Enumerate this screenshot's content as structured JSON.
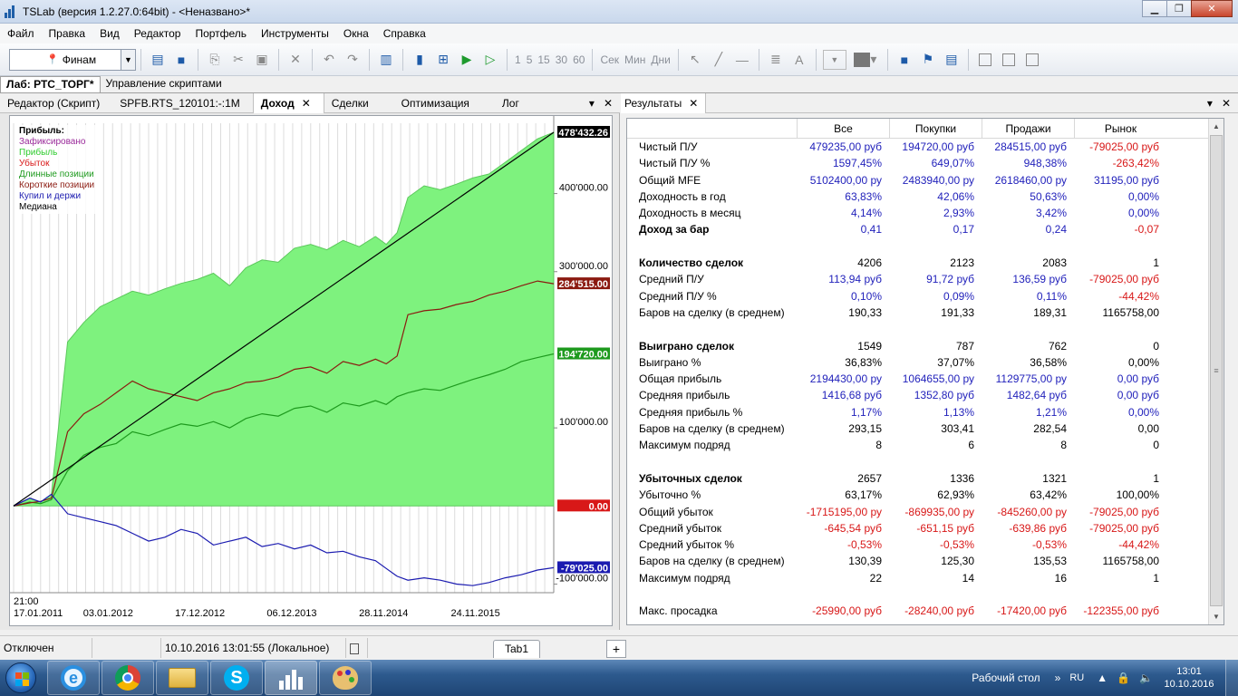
{
  "window": {
    "title": "TSLab (версия 1.2.27.0:64bit) - <Неназвано>*"
  },
  "menu": [
    "Файл",
    "Правка",
    "Вид",
    "Редактор",
    "Портфель",
    "Инструменты",
    "Окна",
    "Справка"
  ],
  "toolbar": {
    "provider": "Финам",
    "intervals": [
      "1",
      "5",
      "15",
      "30",
      "60"
    ],
    "units": [
      "Сек",
      "Мин",
      "Дни"
    ]
  },
  "main_tabs": [
    "Лаб: РТС_ТОРГ*",
    "Управление скриптами"
  ],
  "left_tabs": [
    "Редактор (Скрипт)",
    "SPFB.RTS_120101:-:1M",
    "Доход",
    "Сделки",
    "Оптимизация",
    "Лог"
  ],
  "legend": {
    "header": "Прибыль:",
    "items": [
      {
        "label": "Зафиксировано",
        "color": "#9a2a9a"
      },
      {
        "label": "Прибыль",
        "color": "#2ecc2e"
      },
      {
        "label": "Убыток",
        "color": "#d81818"
      },
      {
        "label": "Длинные позиции",
        "color": "#1e9a1e"
      },
      {
        "label": "Короткие позиции",
        "color": "#8b1a10"
      },
      {
        "label": "Купил и держи",
        "color": "#1b1bb0"
      },
      {
        "label": "Медиана",
        "color": "#000000"
      }
    ]
  },
  "chart_data": {
    "type": "area",
    "y_ticks": [
      -100000,
      100000,
      300000,
      400000
    ],
    "y_tick_labels": [
      "-100'000.00",
      "100'000.00",
      "300'000.00",
      "400'000.00"
    ],
    "ylim": [
      -111000,
      490000
    ],
    "x_labels": [
      "03.01.2012",
      "17.12.2012",
      "06.12.2013",
      "28.11.2014",
      "24.11.2015"
    ],
    "x_start_label": [
      "21:00",
      "17.01.2011"
    ],
    "last_values": [
      {
        "label": "478'432.26",
        "bg": "#000000",
        "fg": "#ffffff"
      },
      {
        "label": "284'515.00",
        "bg": "#8b1a10",
        "fg": "#ffffff"
      },
      {
        "label": "194'720.00",
        "bg": "#1e9a1e",
        "fg": "#ffffff"
      },
      {
        "label": "0.00",
        "bg": "#d81818",
        "fg": "#ffffff"
      },
      {
        "label": "-79'025.00",
        "bg": "#1b1bb0",
        "fg": "#ffffff"
      }
    ],
    "series": [
      {
        "name": "Прибыль",
        "kind": "area",
        "color": "#7ef27e",
        "x": [
          0,
          0.03,
          0.05,
          0.07,
          0.1,
          0.13,
          0.16,
          0.19,
          0.22,
          0.25,
          0.28,
          0.31,
          0.34,
          0.37,
          0.4,
          0.43,
          0.46,
          0.49,
          0.52,
          0.55,
          0.58,
          0.61,
          0.64,
          0.67,
          0.69,
          0.71,
          0.73,
          0.76,
          0.79,
          0.82,
          0.85,
          0.88,
          0.91,
          0.94,
          0.97,
          1.0
        ],
        "y": [
          0,
          10000,
          5000,
          15000,
          210000,
          235000,
          255000,
          265000,
          275000,
          270000,
          278000,
          285000,
          290000,
          298000,
          282000,
          305000,
          315000,
          312000,
          330000,
          335000,
          328000,
          340000,
          332000,
          345000,
          335000,
          350000,
          395000,
          410000,
          405000,
          412000,
          420000,
          425000,
          440000,
          455000,
          470000,
          478432
        ]
      },
      {
        "name": "Длинные позиции",
        "kind": "line",
        "color": "#1e9a1e",
        "x": [
          0,
          0.03,
          0.05,
          0.07,
          0.1,
          0.13,
          0.16,
          0.19,
          0.22,
          0.25,
          0.28,
          0.31,
          0.34,
          0.37,
          0.4,
          0.43,
          0.46,
          0.49,
          0.52,
          0.55,
          0.58,
          0.61,
          0.64,
          0.67,
          0.69,
          0.71,
          0.73,
          0.76,
          0.79,
          0.82,
          0.85,
          0.88,
          0.91,
          0.94,
          0.97,
          1.0
        ],
        "y": [
          0,
          5000,
          3000,
          8000,
          45000,
          65000,
          75000,
          80000,
          95000,
          90000,
          98000,
          105000,
          102000,
          108000,
          100000,
          112000,
          118000,
          115000,
          125000,
          128000,
          120000,
          132000,
          128000,
          135000,
          130000,
          140000,
          145000,
          150000,
          148000,
          155000,
          162000,
          168000,
          175000,
          185000,
          190000,
          194720
        ]
      },
      {
        "name": "Короткие позиции",
        "kind": "line",
        "color": "#8b1a10",
        "x": [
          0,
          0.03,
          0.05,
          0.07,
          0.1,
          0.13,
          0.16,
          0.19,
          0.22,
          0.25,
          0.28,
          0.31,
          0.34,
          0.37,
          0.4,
          0.43,
          0.46,
          0.49,
          0.52,
          0.55,
          0.58,
          0.61,
          0.64,
          0.67,
          0.69,
          0.71,
          0.73,
          0.76,
          0.79,
          0.82,
          0.85,
          0.88,
          0.91,
          0.94,
          0.97,
          1.0
        ],
        "y": [
          0,
          4000,
          6000,
          10000,
          95000,
          118000,
          130000,
          145000,
          160000,
          150000,
          145000,
          140000,
          135000,
          145000,
          150000,
          158000,
          160000,
          165000,
          175000,
          178000,
          170000,
          185000,
          180000,
          188000,
          182000,
          192000,
          245000,
          250000,
          252000,
          258000,
          262000,
          270000,
          275000,
          282000,
          288000,
          284515
        ]
      },
      {
        "name": "Купил и держи",
        "kind": "line",
        "color": "#1b1bb0",
        "x": [
          0,
          0.03,
          0.05,
          0.07,
          0.1,
          0.13,
          0.16,
          0.19,
          0.22,
          0.25,
          0.28,
          0.31,
          0.34,
          0.37,
          0.4,
          0.43,
          0.46,
          0.49,
          0.52,
          0.55,
          0.58,
          0.61,
          0.64,
          0.67,
          0.69,
          0.71,
          0.73,
          0.76,
          0.79,
          0.82,
          0.85,
          0.88,
          0.91,
          0.94,
          0.97,
          1.0
        ],
        "y": [
          0,
          10000,
          5000,
          15000,
          -10000,
          -15000,
          -20000,
          -25000,
          -35000,
          -45000,
          -40000,
          -30000,
          -35000,
          -50000,
          -45000,
          -40000,
          -52000,
          -48000,
          -55000,
          -50000,
          -60000,
          -58000,
          -65000,
          -70000,
          -80000,
          -90000,
          -95000,
          -92000,
          -95000,
          -100000,
          -102000,
          -98000,
          -92000,
          -88000,
          -82000,
          -79025
        ]
      },
      {
        "name": "Медиана",
        "kind": "line",
        "color": "#000000",
        "x": [
          0.0,
          1.0
        ],
        "y": [
          0,
          478432
        ]
      }
    ]
  },
  "results": {
    "tab": "Результаты",
    "columns": [
      "Все",
      "Покупки",
      "Продажи",
      "Рынок"
    ],
    "rows": [
      {
        "label": "Чистый П/У",
        "bold": false,
        "values": [
          "479235,00 руб",
          "194720,00 руб",
          "284515,00 руб",
          "-79025,00 руб"
        ],
        "colors": [
          "blue",
          "blue",
          "blue",
          "red"
        ]
      },
      {
        "label": "Чистый П/У %",
        "bold": false,
        "values": [
          "1597,45%",
          "649,07%",
          "948,38%",
          "-263,42%"
        ],
        "colors": [
          "blue",
          "blue",
          "blue",
          "red"
        ]
      },
      {
        "label": "Общий MFE",
        "bold": false,
        "values": [
          "5102400,00 ру",
          "2483940,00 ру",
          "2618460,00 ру",
          "31195,00 руб"
        ],
        "colors": [
          "blue",
          "blue",
          "blue",
          "blue"
        ]
      },
      {
        "label": "Доходность в год",
        "bold": false,
        "values": [
          "63,83%",
          "42,06%",
          "50,63%",
          "0,00%"
        ],
        "colors": [
          "blue",
          "blue",
          "blue",
          "blue"
        ]
      },
      {
        "label": "Доходность в месяц",
        "bold": false,
        "values": [
          "4,14%",
          "2,93%",
          "3,42%",
          "0,00%"
        ],
        "colors": [
          "blue",
          "blue",
          "blue",
          "blue"
        ]
      },
      {
        "label": "Доход за бар",
        "bold": true,
        "values": [
          "0,41",
          "0,17",
          "0,24",
          "-0,07"
        ],
        "colors": [
          "blue",
          "blue",
          "blue",
          "red"
        ]
      },
      {
        "label": "",
        "bold": false,
        "values": [
          "",
          "",
          "",
          ""
        ],
        "colors": [
          "black",
          "black",
          "black",
          "black"
        ]
      },
      {
        "label": "Количество сделок",
        "bold": true,
        "values": [
          "4206",
          "2123",
          "2083",
          "1"
        ],
        "colors": [
          "black",
          "black",
          "black",
          "black"
        ]
      },
      {
        "label": "Средний П/У",
        "bold": false,
        "values": [
          "113,94 руб",
          "91,72 руб",
          "136,59 руб",
          "-79025,00 руб"
        ],
        "colors": [
          "blue",
          "blue",
          "blue",
          "red"
        ]
      },
      {
        "label": "Средний П/У %",
        "bold": false,
        "values": [
          "0,10%",
          "0,09%",
          "0,11%",
          "-44,42%"
        ],
        "colors": [
          "blue",
          "blue",
          "blue",
          "red"
        ]
      },
      {
        "label": "Баров на сделку (в среднем)",
        "bold": false,
        "values": [
          "190,33",
          "191,33",
          "189,31",
          "1165758,00"
        ],
        "colors": [
          "black",
          "black",
          "black",
          "black"
        ]
      },
      {
        "label": "",
        "bold": false,
        "values": [
          "",
          "",
          "",
          ""
        ],
        "colors": [
          "black",
          "black",
          "black",
          "black"
        ]
      },
      {
        "label": "Выиграно сделок",
        "bold": true,
        "values": [
          "1549",
          "787",
          "762",
          "0"
        ],
        "colors": [
          "black",
          "black",
          "black",
          "black"
        ]
      },
      {
        "label": "Выиграно %",
        "bold": false,
        "values": [
          "36,83%",
          "37,07%",
          "36,58%",
          "0,00%"
        ],
        "colors": [
          "black",
          "black",
          "black",
          "black"
        ]
      },
      {
        "label": "Общая прибыль",
        "bold": false,
        "values": [
          "2194430,00 ру",
          "1064655,00 ру",
          "1129775,00 ру",
          "0,00 руб"
        ],
        "colors": [
          "blue",
          "blue",
          "blue",
          "blue"
        ]
      },
      {
        "label": "Средняя прибыль",
        "bold": false,
        "values": [
          "1416,68 руб",
          "1352,80 руб",
          "1482,64 руб",
          "0,00 руб"
        ],
        "colors": [
          "blue",
          "blue",
          "blue",
          "blue"
        ]
      },
      {
        "label": "Средняя прибыль %",
        "bold": false,
        "values": [
          "1,17%",
          "1,13%",
          "1,21%",
          "0,00%"
        ],
        "colors": [
          "blue",
          "blue",
          "blue",
          "blue"
        ]
      },
      {
        "label": "Баров на сделку (в среднем)",
        "bold": false,
        "values": [
          "293,15",
          "303,41",
          "282,54",
          "0,00"
        ],
        "colors": [
          "black",
          "black",
          "black",
          "black"
        ]
      },
      {
        "label": "Максимум подряд",
        "bold": false,
        "values": [
          "8",
          "6",
          "8",
          "0"
        ],
        "colors": [
          "black",
          "black",
          "black",
          "black"
        ]
      },
      {
        "label": "",
        "bold": false,
        "values": [
          "",
          "",
          "",
          ""
        ],
        "colors": [
          "black",
          "black",
          "black",
          "black"
        ]
      },
      {
        "label": "Убыточных сделок",
        "bold": true,
        "values": [
          "2657",
          "1336",
          "1321",
          "1"
        ],
        "colors": [
          "black",
          "black",
          "black",
          "black"
        ]
      },
      {
        "label": "Убыточно %",
        "bold": false,
        "values": [
          "63,17%",
          "62,93%",
          "63,42%",
          "100,00%"
        ],
        "colors": [
          "black",
          "black",
          "black",
          "black"
        ]
      },
      {
        "label": "Общий убыток",
        "bold": false,
        "values": [
          "-1715195,00 ру",
          "-869935,00 ру",
          "-845260,00 ру",
          "-79025,00 руб"
        ],
        "colors": [
          "red",
          "red",
          "red",
          "red"
        ]
      },
      {
        "label": "Средний убыток",
        "bold": false,
        "values": [
          "-645,54 руб",
          "-651,15 руб",
          "-639,86 руб",
          "-79025,00 руб"
        ],
        "colors": [
          "red",
          "red",
          "red",
          "red"
        ]
      },
      {
        "label": "Средний убыток %",
        "bold": false,
        "values": [
          "-0,53%",
          "-0,53%",
          "-0,53%",
          "-44,42%"
        ],
        "colors": [
          "red",
          "red",
          "red",
          "red"
        ]
      },
      {
        "label": "Баров на сделку (в среднем)",
        "bold": false,
        "values": [
          "130,39",
          "125,30",
          "135,53",
          "1165758,00"
        ],
        "colors": [
          "black",
          "black",
          "black",
          "black"
        ]
      },
      {
        "label": "Максимум подряд",
        "bold": false,
        "values": [
          "22",
          "14",
          "16",
          "1"
        ],
        "colors": [
          "black",
          "black",
          "black",
          "black"
        ]
      },
      {
        "label": "",
        "bold": false,
        "values": [
          "",
          "",
          "",
          ""
        ],
        "colors": [
          "black",
          "black",
          "black",
          "black"
        ]
      },
      {
        "label": "Макс. просадка",
        "bold": false,
        "values": [
          "-25990,00 руб",
          "-28240,00 руб",
          "-17420,00 руб",
          "-122355,00 руб"
        ],
        "colors": [
          "red",
          "red",
          "red",
          "red"
        ]
      }
    ]
  },
  "status": {
    "connection": "Отключен",
    "datetime": "10.10.2016 13:01:55 (Локальное)",
    "tab": "Tab1",
    "plus": "+"
  },
  "taskbar": {
    "desktop_label": "Рабочий стол",
    "lang": "RU",
    "time": "13:01",
    "date": "10.10.2016",
    "ie_glyph": "e",
    "skype_glyph": "S"
  }
}
